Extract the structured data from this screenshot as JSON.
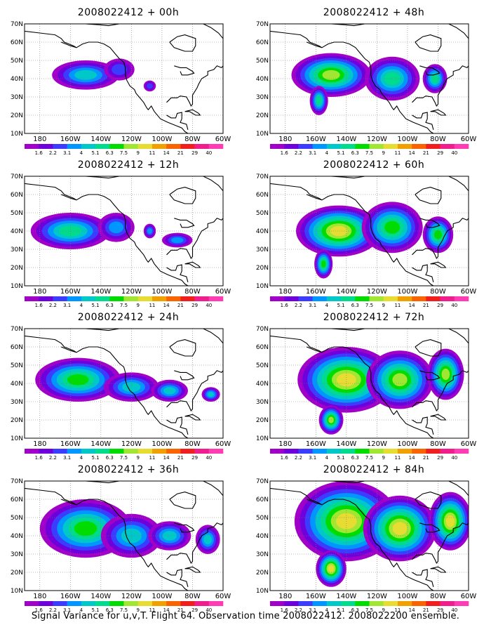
{
  "figure": {
    "caption": "Signal Variance for u,v,T. Flight 64. Observation time 2008022412. 2008022200 ensemble."
  },
  "axes": {
    "lat_labels": [
      "70N",
      "60N",
      "50N",
      "40N",
      "30N",
      "20N",
      "10N"
    ],
    "lon_labels": [
      "180",
      "160W",
      "140W",
      "120W",
      "100W",
      "80W",
      "60W"
    ]
  },
  "colorbar": {
    "levels": [
      "1.6",
      "2.2",
      "3.1",
      "4",
      "5.1",
      "6.3",
      "7.5",
      "9",
      "11",
      "14",
      "21",
      "29",
      "40"
    ],
    "colors": [
      "#a000c8",
      "#6e00dc",
      "#3c3cff",
      "#0096ff",
      "#00c8c8",
      "#00dc8c",
      "#00dc00",
      "#a0e632",
      "#e6dc32",
      "#f0a000",
      "#fa6400",
      "#f01e1e",
      "#f01e8c",
      "#ff3cb4"
    ]
  },
  "panels": [
    {
      "title": "2008022412 + 00h",
      "level": 0
    },
    {
      "title": "2008022412 + 48h",
      "level": 3
    },
    {
      "title": "2008022412 + 12h",
      "level": 1
    },
    {
      "title": "2008022412 + 60h",
      "level": 4
    },
    {
      "title": "2008022412 + 24h",
      "level": 2
    },
    {
      "title": "2008022412 + 72h",
      "level": 5
    },
    {
      "title": "2008022412 + 36h",
      "level": 2
    },
    {
      "title": "2008022412 + 84h",
      "level": 6
    }
  ]
}
